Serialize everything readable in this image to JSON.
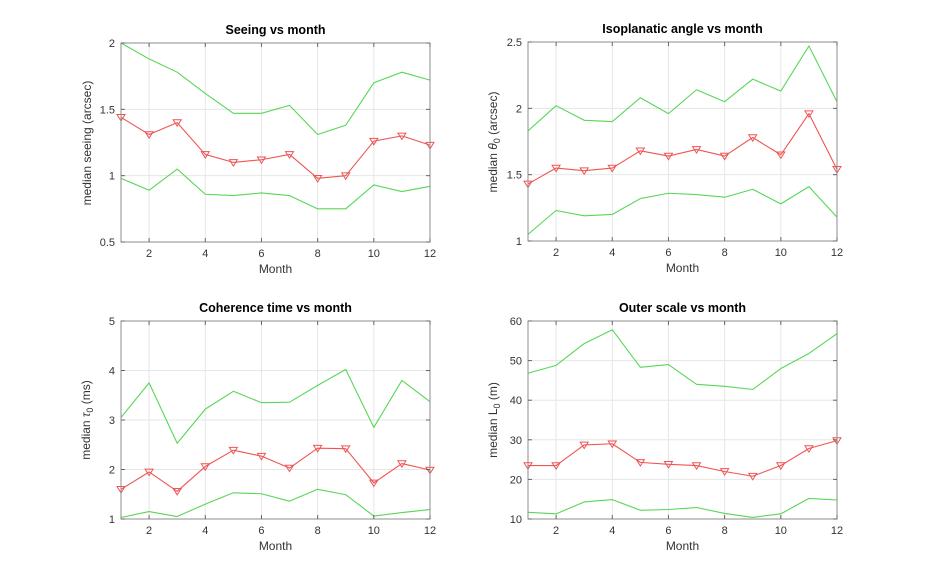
{
  "figure": {
    "background": "#ffffff",
    "palette": {
      "median_line": "#f05454",
      "envelope_line": "#58d658",
      "grid_line": "#e6e6e6",
      "axis_box": "#8c8c8c",
      "tick_mark": "#666666",
      "tick_label": "#333333",
      "title_color": "#000000"
    }
  },
  "chart_data": [
    {
      "type": "line",
      "title": "Seeing vs month",
      "xlabel": "Month",
      "ylabel": "median seeing (arcsec)",
      "x": [
        1,
        2,
        3,
        4,
        5,
        6,
        7,
        8,
        9,
        10,
        11,
        12
      ],
      "xlim": [
        1,
        12
      ],
      "xticks": [
        2,
        4,
        6,
        8,
        10,
        12
      ],
      "ylim": [
        0.5,
        2
      ],
      "yticks": [
        0.5,
        1,
        1.5,
        2
      ],
      "grid": true,
      "legend": "none",
      "series": [
        {
          "name": "upper envelope",
          "role": "envelope",
          "color": "#58d658",
          "marker": "none",
          "values": [
            2.0,
            1.88,
            1.78,
            1.62,
            1.47,
            1.47,
            1.53,
            1.31,
            1.38,
            1.7,
            1.78,
            1.72
          ]
        },
        {
          "name": "lower envelope",
          "role": "envelope",
          "color": "#58d658",
          "marker": "none",
          "values": [
            0.98,
            0.89,
            1.05,
            0.86,
            0.85,
            0.87,
            0.85,
            0.75,
            0.75,
            0.93,
            0.88,
            0.92
          ]
        },
        {
          "name": "median",
          "role": "median",
          "color": "#f05454",
          "marker": "triangle-down",
          "values": [
            1.44,
            1.31,
            1.4,
            1.16,
            1.1,
            1.12,
            1.16,
            0.98,
            1.0,
            1.26,
            1.3,
            1.23
          ]
        }
      ]
    },
    {
      "type": "line",
      "title": "Isoplanatic angle vs month",
      "xlabel": "Month",
      "ylabel": "median θ_0 (arcsec)",
      "x": [
        1,
        2,
        3,
        4,
        5,
        6,
        7,
        8,
        9,
        10,
        11,
        12
      ],
      "xlim": [
        1,
        12
      ],
      "xticks": [
        2,
        4,
        6,
        8,
        10,
        12
      ],
      "ylim": [
        1,
        2.5
      ],
      "yticks": [
        1,
        1.5,
        2,
        2.5
      ],
      "grid": true,
      "legend": "none",
      "series": [
        {
          "name": "upper envelope",
          "role": "envelope",
          "color": "#58d658",
          "marker": "none",
          "values": [
            1.83,
            2.02,
            1.91,
            1.9,
            2.08,
            1.96,
            2.14,
            2.05,
            2.22,
            2.13,
            2.47,
            2.05
          ]
        },
        {
          "name": "lower envelope",
          "role": "envelope",
          "color": "#58d658",
          "marker": "none",
          "values": [
            1.05,
            1.23,
            1.19,
            1.2,
            1.32,
            1.36,
            1.35,
            1.33,
            1.39,
            1.28,
            1.41,
            1.18
          ]
        },
        {
          "name": "median",
          "role": "median",
          "color": "#f05454",
          "marker": "triangle-down",
          "values": [
            1.43,
            1.55,
            1.53,
            1.55,
            1.68,
            1.64,
            1.69,
            1.64,
            1.78,
            1.65,
            1.96,
            1.54
          ]
        }
      ]
    },
    {
      "type": "line",
      "title": "Coherence time vs month",
      "xlabel": "Month",
      "ylabel": "median τ_0 (ms)",
      "x": [
        1,
        2,
        3,
        4,
        5,
        6,
        7,
        8,
        9,
        10,
        11,
        12
      ],
      "xlim": [
        1,
        12
      ],
      "xticks": [
        2,
        4,
        6,
        8,
        10,
        12
      ],
      "ylim": [
        1,
        5
      ],
      "yticks": [
        1,
        2,
        3,
        4,
        5
      ],
      "grid": true,
      "legend": "none",
      "series": [
        {
          "name": "upper envelope",
          "role": "envelope",
          "color": "#58d658",
          "marker": "none",
          "values": [
            3.05,
            3.75,
            2.53,
            3.22,
            3.58,
            3.35,
            3.36,
            3.7,
            4.02,
            2.85,
            3.8,
            3.37
          ]
        },
        {
          "name": "lower envelope",
          "role": "envelope",
          "color": "#58d658",
          "marker": "none",
          "values": [
            1.03,
            1.15,
            1.05,
            1.3,
            1.53,
            1.51,
            1.36,
            1.6,
            1.49,
            1.06,
            1.13,
            1.19
          ]
        },
        {
          "name": "median",
          "role": "median",
          "color": "#f05454",
          "marker": "triangle-down",
          "values": [
            1.6,
            1.95,
            1.56,
            2.06,
            2.39,
            2.27,
            2.03,
            2.43,
            2.42,
            1.73,
            2.12,
            1.99
          ]
        }
      ]
    },
    {
      "type": "line",
      "title": "Outer scale vs month",
      "xlabel": "Month",
      "ylabel": "median L_0 (m)",
      "x": [
        1,
        2,
        3,
        4,
        5,
        6,
        7,
        8,
        9,
        10,
        11,
        12
      ],
      "xlim": [
        1,
        12
      ],
      "xticks": [
        2,
        4,
        6,
        8,
        10,
        12
      ],
      "ylim": [
        10,
        60
      ],
      "yticks": [
        10,
        20,
        30,
        40,
        50,
        60
      ],
      "grid": true,
      "legend": "none",
      "series": [
        {
          "name": "upper envelope",
          "role": "envelope",
          "color": "#58d658",
          "marker": "none",
          "values": [
            46.8,
            48.8,
            54.3,
            57.8,
            48.3,
            49.0,
            44.0,
            43.5,
            42.7,
            48.0,
            51.8,
            56.8
          ]
        },
        {
          "name": "lower envelope",
          "role": "envelope",
          "color": "#58d658",
          "marker": "none",
          "values": [
            11.7,
            11.3,
            14.3,
            14.9,
            12.2,
            12.4,
            12.9,
            11.4,
            10.4,
            11.3,
            15.2,
            14.8
          ]
        },
        {
          "name": "median",
          "role": "median",
          "color": "#f05454",
          "marker": "triangle-down",
          "values": [
            23.5,
            23.5,
            28.7,
            29.0,
            24.3,
            23.8,
            23.5,
            22.0,
            20.8,
            23.5,
            27.8,
            29.8
          ]
        }
      ]
    }
  ]
}
